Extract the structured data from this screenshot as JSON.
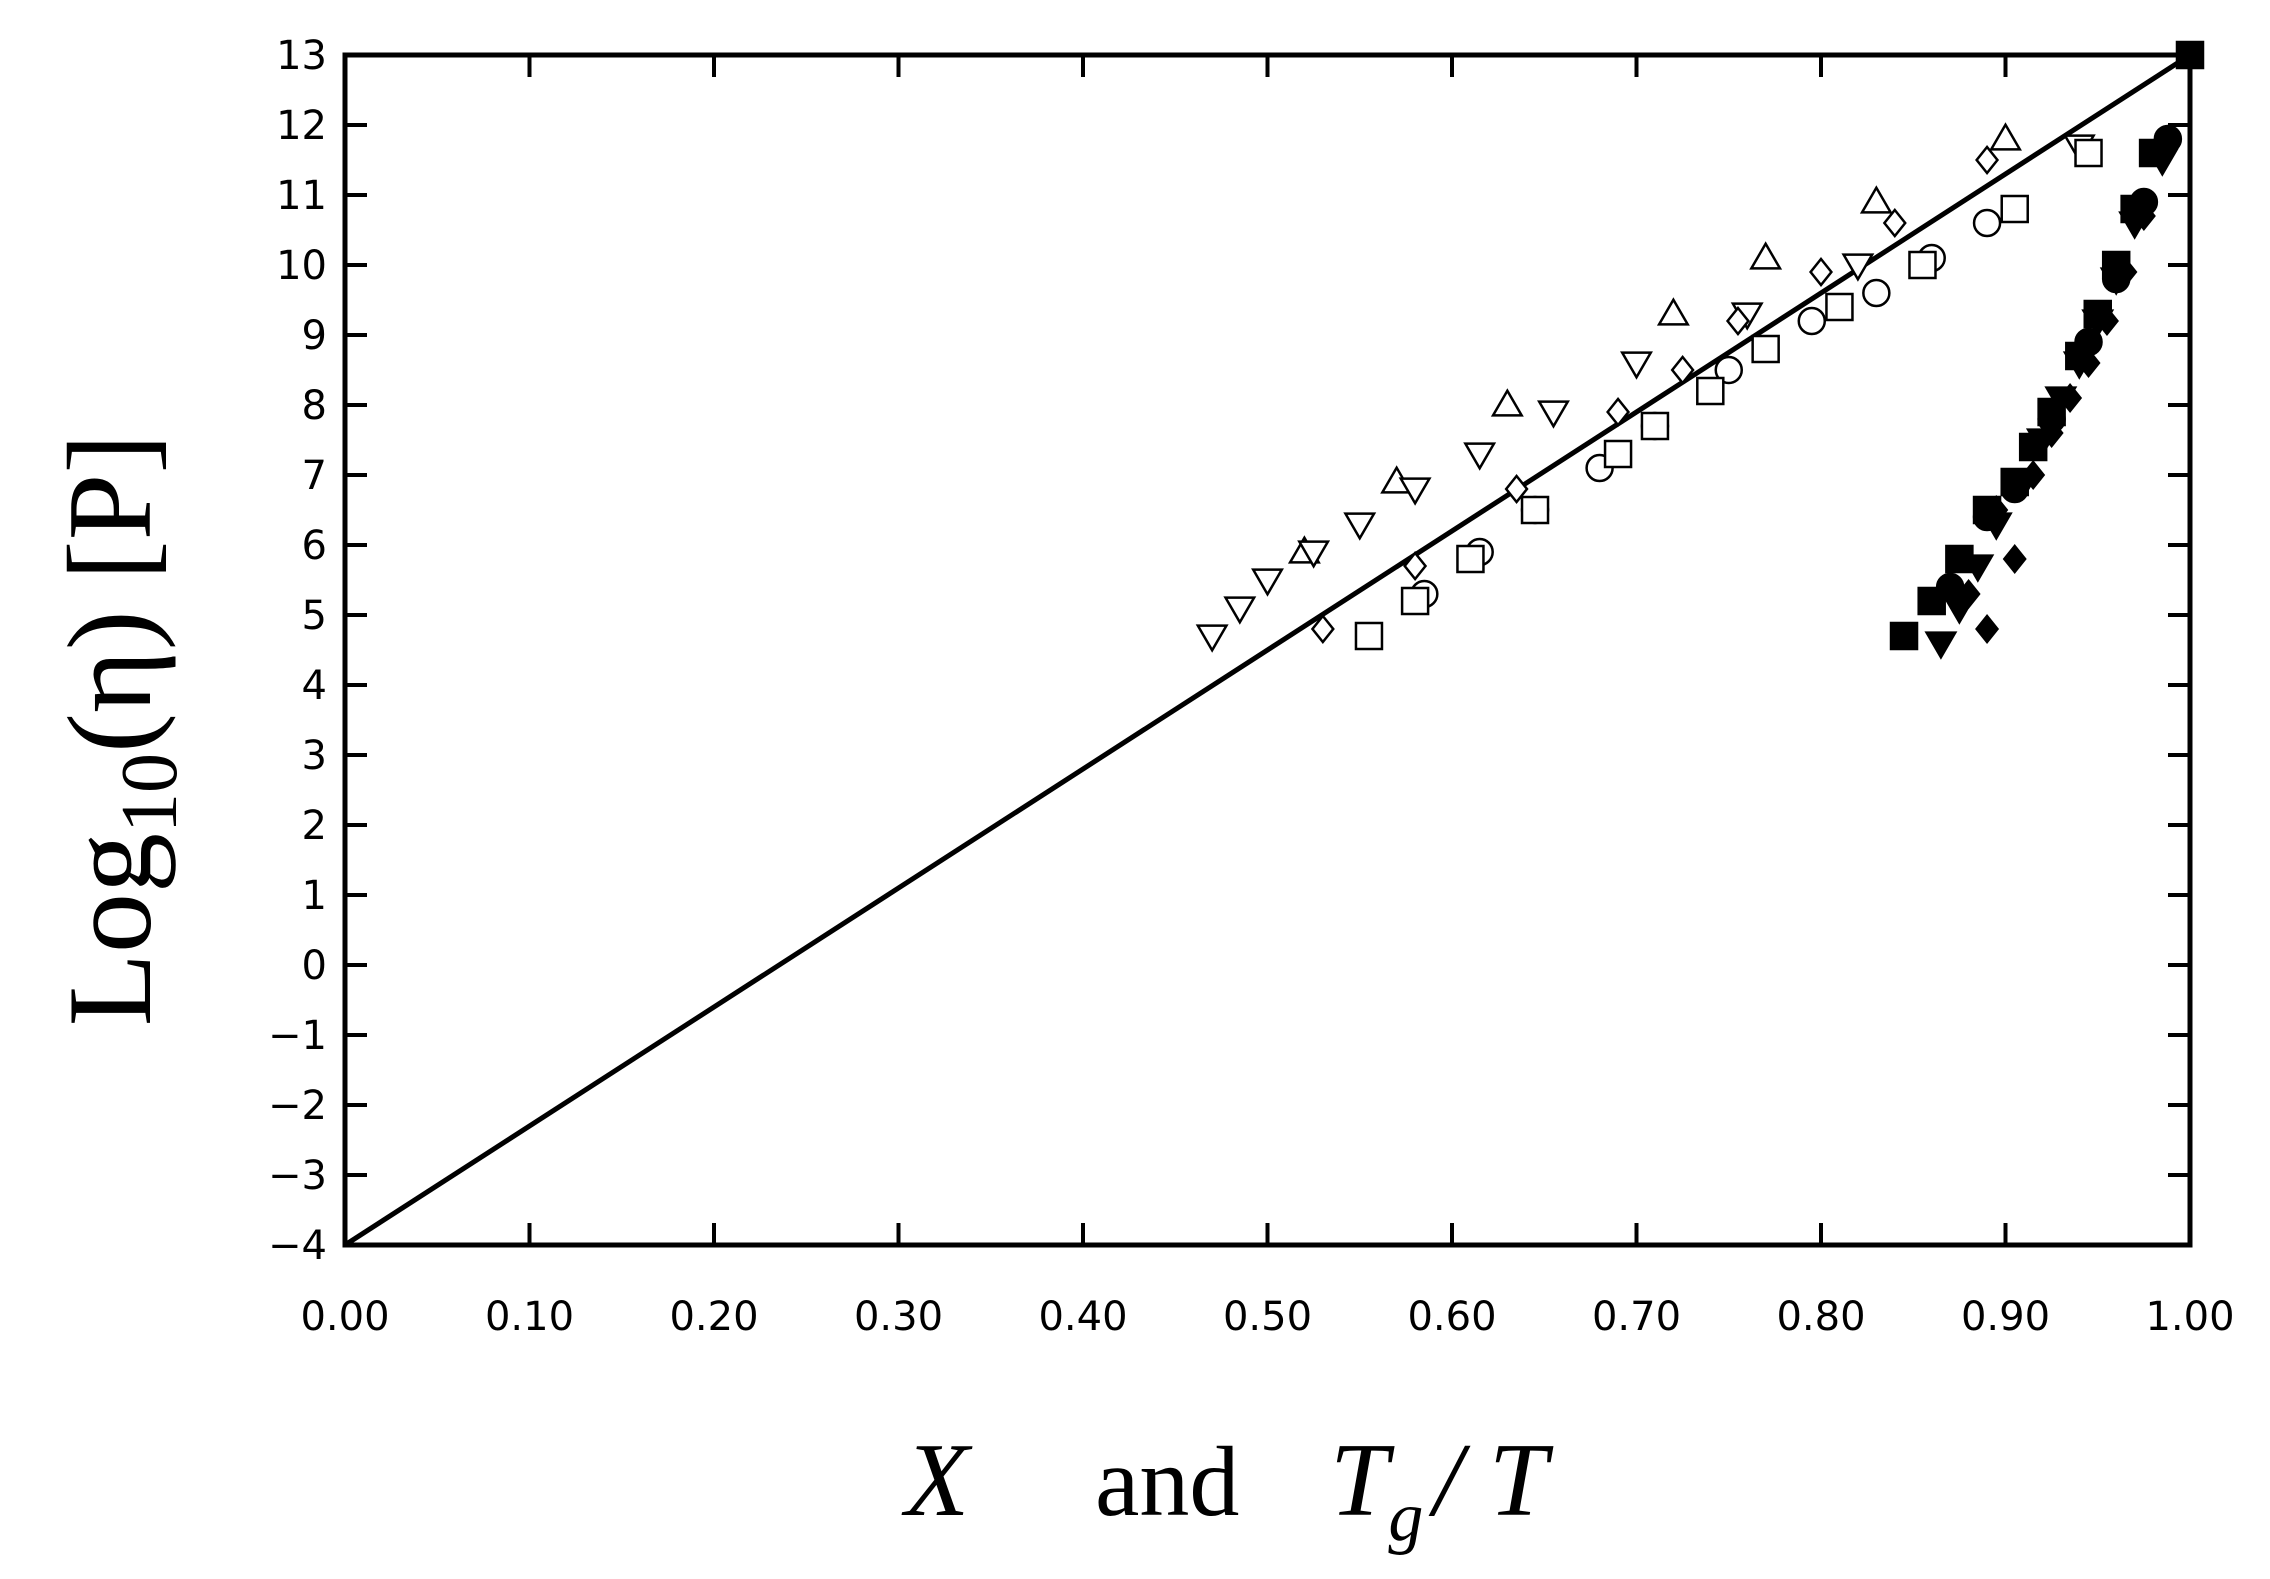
{
  "chart_data": {
    "type": "scatter",
    "title": "",
    "ylabel": {
      "base": "Log",
      "sub": "10",
      "rest": "(η)  [P]"
    },
    "xlabel": {
      "v1": "X",
      "mid": "and",
      "v2": "T",
      "sub": "g",
      "rest": "/ T"
    },
    "xlim": [
      0.0,
      1.0
    ],
    "ylim": [
      -4,
      13
    ],
    "x_ticks": [
      "0.00",
      "0.10",
      "0.20",
      "0.30",
      "0.40",
      "0.50",
      "0.60",
      "0.70",
      "0.80",
      "0.90",
      "1.00"
    ],
    "y_ticks": [
      "-4",
      "-3",
      "-2",
      "-1",
      "0",
      "1",
      "2",
      "3",
      "4",
      "5",
      "6",
      "7",
      "8",
      "9",
      "10",
      "11",
      "12",
      "13"
    ],
    "grid": false,
    "legend": "none",
    "line": {
      "x": [
        0.0,
        1.0
      ],
      "y": [
        -4,
        13
      ]
    },
    "series": [
      {
        "marker": "triangle-up",
        "filled": false,
        "points": [
          [
            0.52,
            5.9
          ],
          [
            0.57,
            6.9
          ],
          [
            0.63,
            8.0
          ],
          [
            0.72,
            9.3
          ],
          [
            0.77,
            10.1
          ],
          [
            0.83,
            10.9
          ],
          [
            0.9,
            11.8
          ]
        ]
      },
      {
        "marker": "triangle-down",
        "filled": false,
        "points": [
          [
            0.47,
            4.7
          ],
          [
            0.485,
            5.1
          ],
          [
            0.5,
            5.5
          ],
          [
            0.525,
            5.9
          ],
          [
            0.55,
            6.3
          ],
          [
            0.58,
            6.8
          ],
          [
            0.615,
            7.3
          ],
          [
            0.655,
            7.9
          ],
          [
            0.7,
            8.6
          ],
          [
            0.76,
            9.3
          ],
          [
            0.82,
            10.0
          ],
          [
            0.94,
            11.7
          ]
        ]
      },
      {
        "marker": "diamond",
        "filled": false,
        "points": [
          [
            0.53,
            4.8
          ],
          [
            0.58,
            5.7
          ],
          [
            0.635,
            6.8
          ],
          [
            0.69,
            7.9
          ],
          [
            0.725,
            8.5
          ],
          [
            0.755,
            9.2
          ],
          [
            0.8,
            9.9
          ],
          [
            0.84,
            10.6
          ],
          [
            0.89,
            11.5
          ]
        ]
      },
      {
        "marker": "circle",
        "filled": false,
        "points": [
          [
            0.585,
            5.3
          ],
          [
            0.615,
            5.9
          ],
          [
            0.645,
            6.5
          ],
          [
            0.68,
            7.1
          ],
          [
            0.71,
            7.7
          ],
          [
            0.75,
            8.5
          ],
          [
            0.795,
            9.2
          ],
          [
            0.83,
            9.6
          ],
          [
            0.86,
            10.1
          ],
          [
            0.89,
            10.6
          ]
        ]
      },
      {
        "marker": "square",
        "filled": false,
        "points": [
          [
            0.555,
            4.7
          ],
          [
            0.58,
            5.2
          ],
          [
            0.61,
            5.8
          ],
          [
            0.645,
            6.5
          ],
          [
            0.69,
            7.3
          ],
          [
            0.71,
            7.7
          ],
          [
            0.74,
            8.2
          ],
          [
            0.77,
            8.8
          ],
          [
            0.81,
            9.4
          ],
          [
            0.855,
            10.0
          ],
          [
            0.905,
            10.8
          ],
          [
            0.945,
            11.6
          ]
        ]
      },
      {
        "marker": "square",
        "filled": true,
        "points": [
          [
            0.845,
            4.7
          ],
          [
            0.86,
            5.2
          ],
          [
            0.875,
            5.8
          ],
          [
            0.89,
            6.5
          ],
          [
            0.905,
            6.9
          ],
          [
            0.915,
            7.4
          ],
          [
            0.925,
            7.9
          ],
          [
            0.94,
            8.7
          ],
          [
            0.95,
            9.3
          ],
          [
            0.96,
            10.0
          ],
          [
            0.97,
            10.8
          ],
          [
            0.98,
            11.6
          ],
          [
            1.0,
            13.0
          ]
        ]
      },
      {
        "marker": "triangle-down",
        "filled": true,
        "points": [
          [
            0.865,
            4.6
          ],
          [
            0.875,
            5.1
          ],
          [
            0.885,
            5.7
          ],
          [
            0.895,
            6.3
          ],
          [
            0.91,
            6.9
          ],
          [
            0.92,
            7.5
          ],
          [
            0.93,
            8.1
          ],
          [
            0.94,
            8.6
          ],
          [
            0.95,
            9.2
          ],
          [
            0.96,
            9.8
          ],
          [
            0.97,
            10.6
          ],
          [
            0.985,
            11.5
          ]
        ]
      },
      {
        "marker": "diamond",
        "filled": true,
        "points": [
          [
            0.89,
            4.8
          ],
          [
            0.88,
            5.3
          ],
          [
            0.905,
            5.8
          ],
          [
            0.895,
            6.5
          ],
          [
            0.915,
            7.0
          ],
          [
            0.925,
            7.6
          ],
          [
            0.935,
            8.1
          ],
          [
            0.945,
            8.6
          ],
          [
            0.955,
            9.2
          ],
          [
            0.965,
            9.9
          ],
          [
            0.975,
            10.7
          ],
          [
            0.985,
            11.6
          ]
        ]
      },
      {
        "marker": "circle",
        "filled": true,
        "points": [
          [
            0.87,
            5.4
          ],
          [
            0.89,
            6.4
          ],
          [
            0.905,
            6.8
          ],
          [
            0.925,
            7.8
          ],
          [
            0.945,
            8.9
          ],
          [
            0.96,
            9.8
          ],
          [
            0.975,
            10.9
          ],
          [
            0.988,
            11.8
          ]
        ]
      }
    ]
  }
}
